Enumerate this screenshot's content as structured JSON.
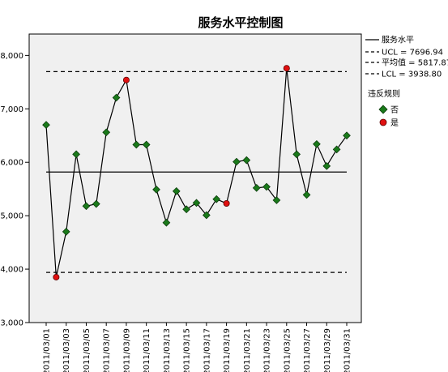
{
  "chart_data": {
    "type": "line",
    "title": "服务水平控制图",
    "x": [
      "2011/03/01",
      "2011/03/02",
      "2011/03/03",
      "2011/03/04",
      "2011/03/05",
      "2011/03/06",
      "2011/03/07",
      "2011/03/08",
      "2011/03/09",
      "2011/03/10",
      "2011/03/11",
      "2011/03/12",
      "2011/03/13",
      "2011/03/14",
      "2011/03/15",
      "2011/03/16",
      "2011/03/17",
      "2011/03/18",
      "2011/03/19",
      "2011/03/20",
      "2011/03/21",
      "2011/03/22",
      "2011/03/23",
      "2011/03/24",
      "2011/03/25",
      "2011/03/26",
      "2011/03/27",
      "2011/03/28",
      "2011/03/29",
      "2011/03/30",
      "2011/03/31"
    ],
    "x_tick_labels": [
      "2011/03/01",
      "2011/03/03",
      "2011/03/05",
      "2011/03/07",
      "2011/03/09",
      "2011/03/11",
      "2011/03/13",
      "2011/03/15",
      "2011/03/17",
      "2011/03/19",
      "2011/03/21",
      "2011/03/23",
      "2011/03/25",
      "2011/03/27",
      "2011/03/29",
      "2011/03/31"
    ],
    "series": [
      {
        "name": "服务水平",
        "values": [
          6700,
          3850,
          4700,
          6150,
          5180,
          5220,
          6560,
          7210,
          7540,
          6330,
          6330,
          5490,
          4870,
          5460,
          5120,
          5240,
          5010,
          5310,
          5230,
          6010,
          6040,
          5520,
          5540,
          5290,
          7760,
          6150,
          5390,
          6340,
          5930,
          6240,
          6500
        ],
        "violations": [
          false,
          true,
          false,
          false,
          false,
          false,
          false,
          false,
          true,
          false,
          false,
          false,
          false,
          false,
          false,
          false,
          false,
          false,
          true,
          false,
          false,
          false,
          false,
          false,
          true,
          false,
          false,
          false,
          false,
          false,
          false
        ]
      }
    ],
    "control_lines": {
      "ucl": 7696.94,
      "mean": 5817.87,
      "lcl": 3938.8
    },
    "y_ticks": [
      "3,000",
      "4,000",
      "5,000",
      "6,000",
      "7,000",
      "8,000"
    ],
    "ylim": [
      3000,
      8400
    ],
    "colors": {
      "ok": "#1a7a1a",
      "violation": "#e01010",
      "line": "#000000",
      "plot_bg": "#f0f0f0"
    },
    "legend": {
      "placement": "right",
      "lines": [
        {
          "label": "服务水平",
          "style": "solid"
        },
        {
          "label": "UCL = 7696.94",
          "style": "dashed"
        },
        {
          "label": "平均值 = 5817.87",
          "style": "dashed"
        },
        {
          "label": "LCL = 3938.80",
          "style": "dashed"
        }
      ],
      "group_title": "违反规则",
      "markers": [
        {
          "label": "否",
          "shape": "diamond",
          "color": "#1a7a1a"
        },
        {
          "label": "是",
          "shape": "circle",
          "color": "#e01010"
        }
      ]
    }
  }
}
